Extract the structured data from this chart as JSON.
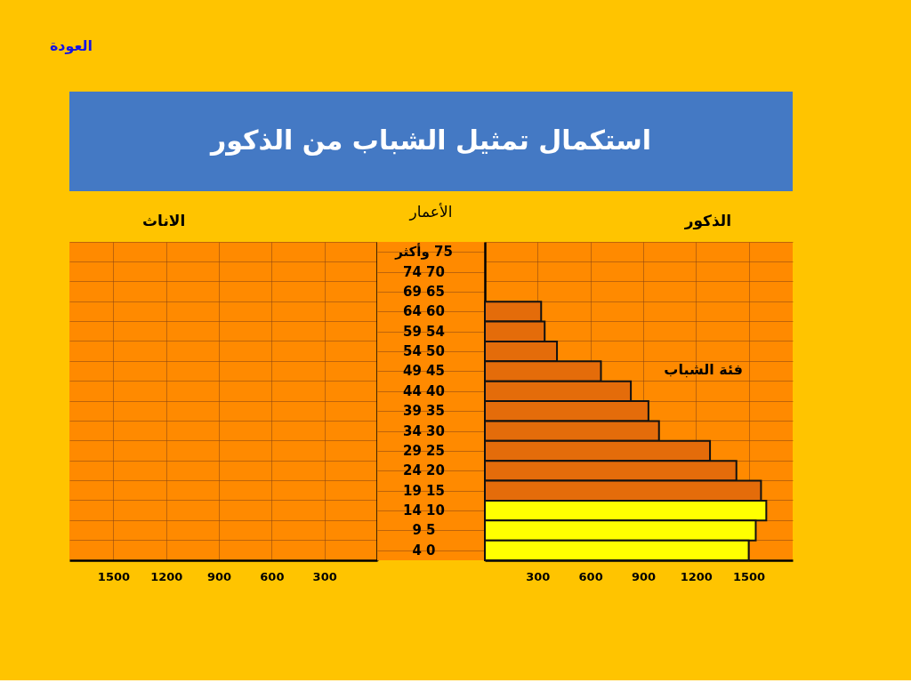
{
  "chart_data": [
    {
      "type": "other",
      "title": "استكمال تمثيل الشباب من الذكور",
      "annotations": [
        "العودة"
      ]
    },
    {
      "type": "bar",
      "orientation": "horizontal",
      "title": "الاناث",
      "categories": [
        null,
        null,
        null,
        null,
        null,
        null,
        null,
        null,
        null,
        null,
        null,
        null,
        null,
        null,
        null,
        null
      ],
      "values": [
        null,
        null,
        null,
        null,
        null,
        null,
        null,
        null,
        null,
        null,
        null,
        null,
        null,
        null,
        null,
        null
      ],
      "xlim": [
        1750,
        0
      ],
      "xticks": [
        1500,
        1200,
        900,
        600,
        300
      ],
      "grid": true,
      "tick_labels": "x"
    },
    {
      "type": "bar",
      "orientation": "horizontal",
      "title": "الذكور",
      "ylabel": "الأعمار",
      "categories": [
        "75 وأكثر",
        "70 74",
        "65 69",
        "60 64",
        "54 59",
        "50 54",
        "45 49",
        "40 44",
        "35 39",
        "30 34",
        "25 29",
        "20 24",
        "15 19",
        "10 14",
        "5 9",
        "0 4"
      ],
      "values": [
        null,
        null,
        null,
        320,
        340,
        410,
        660,
        830,
        930,
        990,
        1280,
        1430,
        1570,
        1600,
        1540,
        1500
      ],
      "colors": [
        null,
        null,
        null,
        "#e46c0a",
        "#e46c0a",
        "#e46c0a",
        "#e46c0a",
        "#e46c0a",
        "#e46c0a",
        "#e46c0a",
        "#e46c0a",
        "#e46c0a",
        "#e46c0a",
        "#ffff00",
        "#ffff00",
        "#ffff00"
      ],
      "xlim": [
        0,
        1750
      ],
      "xticks": [
        300,
        600,
        900,
        1200,
        1500
      ],
      "grid": true,
      "annotations": [
        "فئة الشباب"
      ]
    }
  ]
}
